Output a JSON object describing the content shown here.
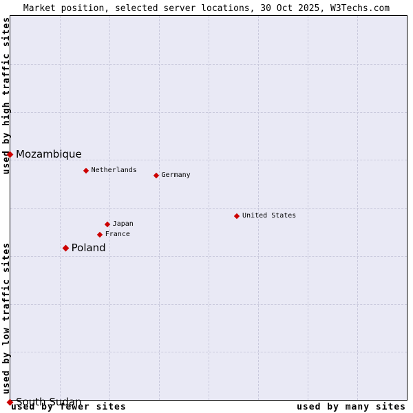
{
  "title": "Market position, selected server locations, 30 Oct 2025, W3Techs.com",
  "axes": {
    "y_top": "used by high traffic sites",
    "y_bottom": "used by low traffic sites",
    "x_left": "used by fewer sites",
    "x_right": "used by many sites"
  },
  "colors": {
    "point": "#cc0000",
    "plot_background": "#e9e9f5",
    "grid": "#c9c9dc",
    "border": "#000000"
  },
  "chart_data": {
    "type": "scatter",
    "title": "Market position, selected server locations, 30 Oct 2025, W3Techs.com",
    "xlabel": "popularity (used by fewer sites → used by many sites)",
    "ylabel": "traffic (used by low traffic sites → used by high traffic sites)",
    "grid": "dashed, 8x8 cells",
    "legend_position": "none",
    "marker": "red-diamond",
    "points": [
      {
        "label": "Mozambique",
        "x_pct": 0.0,
        "y_pct": 35.5,
        "emphasis": "large"
      },
      {
        "label": "Netherlands",
        "x_pct": 19.2,
        "y_pct": 40.2,
        "emphasis": "small"
      },
      {
        "label": "Germany",
        "x_pct": 36.9,
        "y_pct": 41.4,
        "emphasis": "small"
      },
      {
        "label": "United States",
        "x_pct": 57.3,
        "y_pct": 52.0,
        "emphasis": "small"
      },
      {
        "label": "Japan",
        "x_pct": 24.6,
        "y_pct": 54.1,
        "emphasis": "small"
      },
      {
        "label": "France",
        "x_pct": 22.7,
        "y_pct": 56.8,
        "emphasis": "small"
      },
      {
        "label": "Poland",
        "x_pct": 14.0,
        "y_pct": 59.8,
        "emphasis": "large"
      },
      {
        "label": "South Sudan",
        "x_pct": 0.0,
        "y_pct": 100.0,
        "emphasis": "large"
      }
    ]
  }
}
